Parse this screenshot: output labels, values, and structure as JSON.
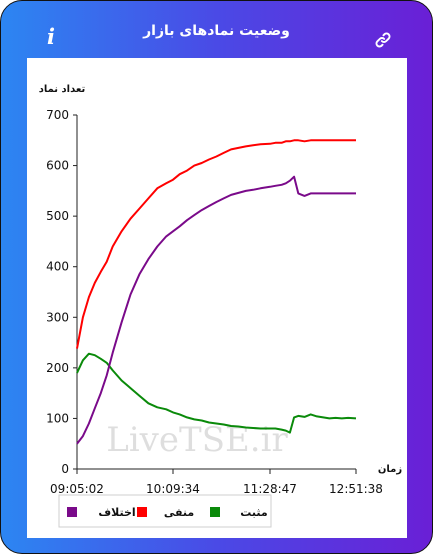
{
  "header": {
    "title": "وضعیت نمادهای بازار",
    "info_glyph": "i",
    "info_icon": "info-icon",
    "link_icon": "link-icon"
  },
  "watermark": "LiveTSE.ir",
  "chart_data": {
    "type": "line",
    "ylabel": "تعداد نماد",
    "xlabel": "زمان",
    "ylim": [
      0,
      700
    ],
    "yticks": [
      0,
      100,
      200,
      300,
      400,
      500,
      600,
      700
    ],
    "xticks": [
      "09:05:02",
      "10:09:34",
      "11:28:47",
      "12:51:38"
    ],
    "x": [
      "09:05:02",
      "09:09",
      "09:13",
      "09:17",
      "09:21",
      "09:25",
      "09:29",
      "09:35",
      "09:41",
      "09:47",
      "09:53",
      "09:59",
      "10:05",
      "10:09:34",
      "10:15",
      "10:21",
      "10:27",
      "10:33",
      "10:39",
      "10:45",
      "10:51",
      "10:57",
      "11:03",
      "11:09",
      "11:15",
      "11:21",
      "11:28:47",
      "11:34",
      "11:40",
      "11:44",
      "11:48",
      "11:52",
      "11:56",
      "12:02",
      "12:08",
      "12:14",
      "12:20",
      "12:26",
      "12:32",
      "12:38",
      "12:44",
      "12:51:38"
    ],
    "legend_position": "bottom",
    "series": [
      {
        "name": "منفی",
        "color": "#ff0000",
        "values": [
          238,
          300,
          340,
          368,
          390,
          410,
          440,
          470,
          495,
          515,
          535,
          555,
          565,
          572,
          583,
          590,
          600,
          605,
          612,
          618,
          625,
          632,
          635,
          638,
          640,
          642,
          643,
          645,
          645,
          648,
          648,
          650,
          650,
          648,
          650,
          650,
          650,
          650,
          650,
          650,
          650,
          650
        ]
      },
      {
        "name": "اختلاف",
        "color": "#7a0a8a",
        "values": [
          50,
          65,
          90,
          120,
          150,
          185,
          230,
          290,
          345,
          385,
          415,
          440,
          460,
          470,
          480,
          492,
          502,
          512,
          520,
          528,
          535,
          542,
          546,
          550,
          552,
          555,
          558,
          560,
          562,
          565,
          570,
          578,
          545,
          540,
          545,
          545,
          545,
          545,
          545,
          545,
          545,
          545
        ]
      },
      {
        "name": "مثبت",
        "color": "#0a8a0a",
        "values": [
          190,
          215,
          228,
          225,
          218,
          210,
          195,
          175,
          160,
          145,
          130,
          122,
          118,
          112,
          108,
          102,
          98,
          96,
          92,
          90,
          88,
          85,
          84,
          82,
          81,
          80,
          80,
          80,
          78,
          76,
          72,
          102,
          105,
          103,
          108,
          104,
          102,
          100,
          101,
          100,
          101,
          100
        ]
      }
    ]
  }
}
